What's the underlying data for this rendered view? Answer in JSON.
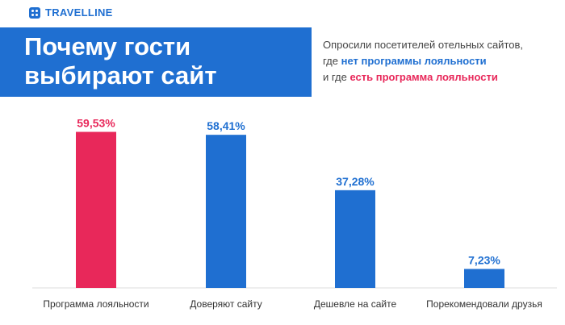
{
  "brand": {
    "name": "TRAVELLINE",
    "color": "#1f6fd1"
  },
  "title": {
    "line1": "Почему гости",
    "line2": "выбирают сайт"
  },
  "subtitle": {
    "line1": "Опросили посетителей отельных сайтов,",
    "line2_prefix": "где ",
    "line2_highlight": "нет программы лояльности",
    "line3_prefix": "и где ",
    "line3_highlight": "есть программа лояльности"
  },
  "colors": {
    "no_program": "#1f6fd1",
    "with_program": "#e8285a",
    "baseline": "#dddddd"
  },
  "chart_data": {
    "type": "bar",
    "title": "Почему гости выбирают сайт",
    "categories": [
      "Программа лояльности",
      "Доверяют сайту",
      "Дешевле на сайте",
      "Порекомендовали друзья"
    ],
    "values": [
      59.53,
      58.41,
      37.28,
      7.23
    ],
    "value_labels": [
      "59,53%",
      "58,41%",
      "37,28%",
      "7,23%"
    ],
    "bar_colors": [
      "#e8285a",
      "#1f6fd1",
      "#1f6fd1",
      "#1f6fd1"
    ],
    "ylim": [
      0,
      60
    ],
    "grid": false,
    "legend": "none"
  }
}
